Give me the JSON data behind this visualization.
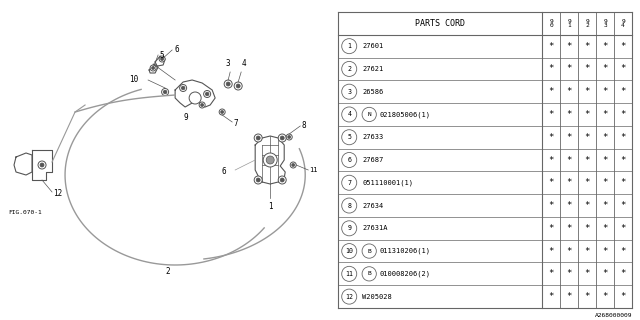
{
  "fig_code": "A268000009",
  "fig_ref": "FIG.070-1",
  "table_years": [
    "9\n0",
    "9\n1",
    "9\n2",
    "9\n3",
    "9\n4"
  ],
  "table_rows": [
    {
      "num": "1",
      "prefix": "",
      "part": "27601",
      "mark": "*"
    },
    {
      "num": "2",
      "prefix": "",
      "part": "27621",
      "mark": "*"
    },
    {
      "num": "3",
      "prefix": "",
      "part": "26586",
      "mark": "*"
    },
    {
      "num": "4",
      "prefix": "N",
      "part": "021805006(1)",
      "mark": "*"
    },
    {
      "num": "5",
      "prefix": "",
      "part": "27633",
      "mark": "*"
    },
    {
      "num": "6",
      "prefix": "",
      "part": "27687",
      "mark": "*"
    },
    {
      "num": "7",
      "prefix": "",
      "part": "051110001(1)",
      "mark": "*"
    },
    {
      "num": "8",
      "prefix": "",
      "part": "27634",
      "mark": "*"
    },
    {
      "num": "9",
      "prefix": "",
      "part": "27631A",
      "mark": "*"
    },
    {
      "num": "10",
      "prefix": "B",
      "part": "011310206(1)",
      "mark": "*"
    },
    {
      "num": "11",
      "prefix": "B",
      "part": "010008206(2)",
      "mark": "*"
    },
    {
      "num": "12",
      "prefix": "",
      "part": "W205028",
      "mark": "*"
    }
  ],
  "bg_color": "#ffffff",
  "line_color": "#000000",
  "table_line_color": "#666666",
  "text_color": "#000000",
  "diagram_color": "#999999",
  "diagram_dark": "#555555"
}
